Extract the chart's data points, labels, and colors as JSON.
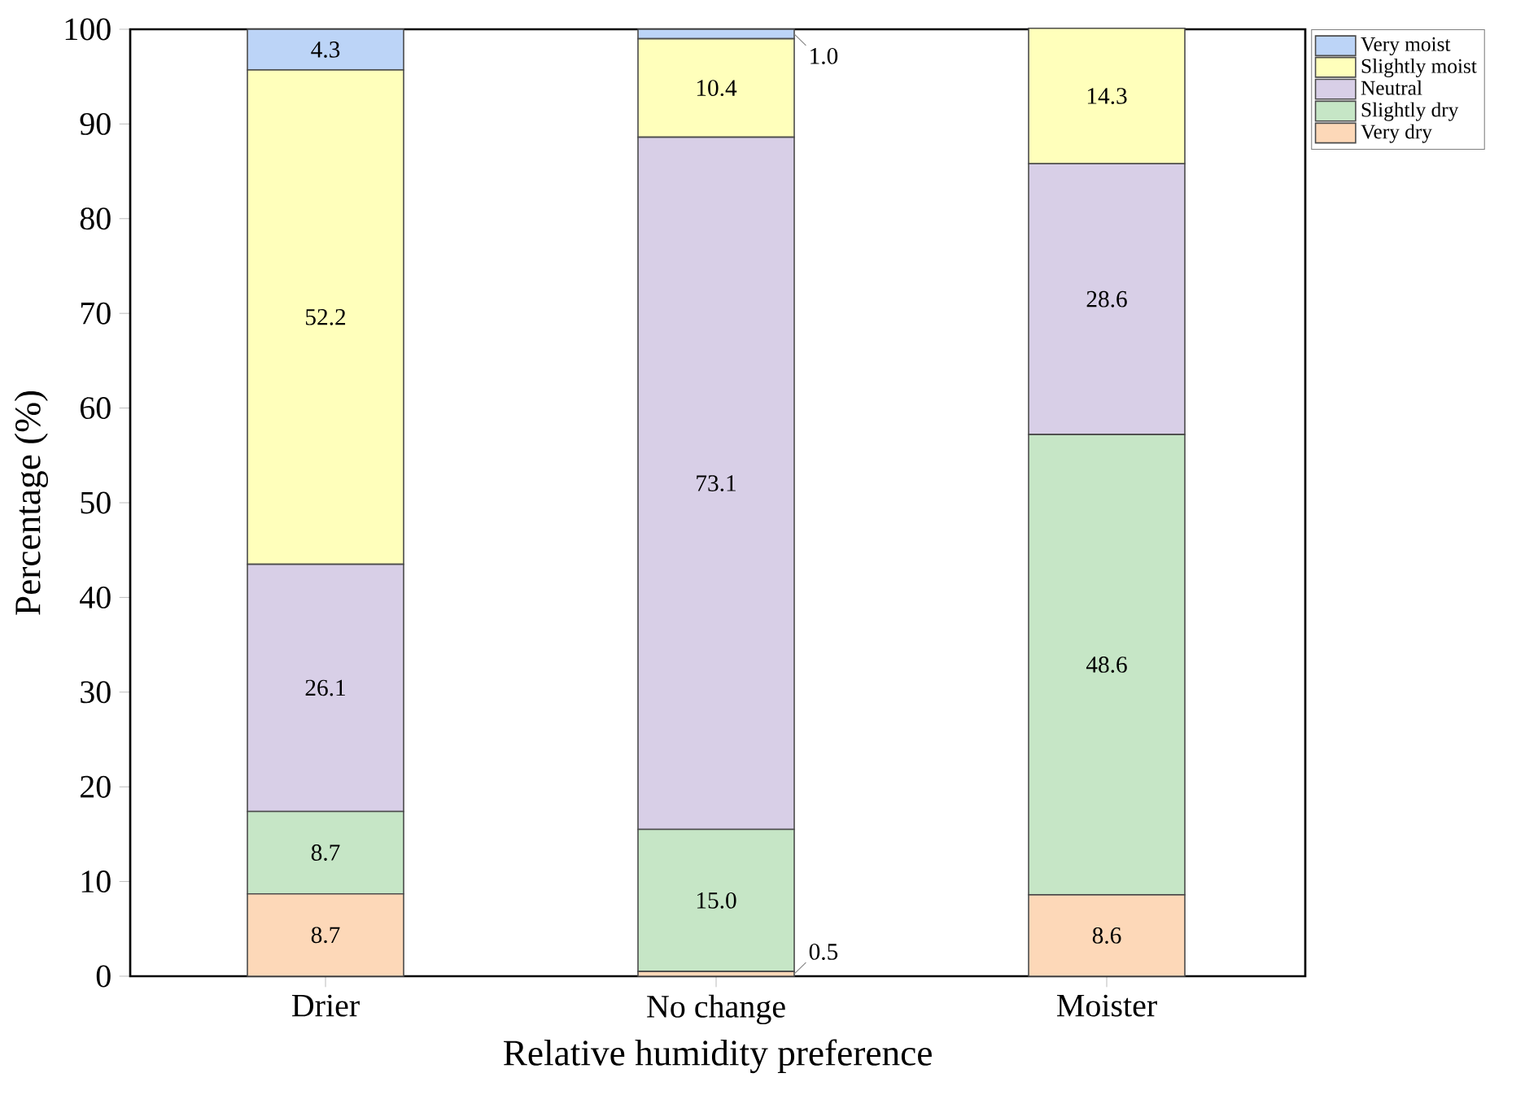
{
  "chart_data": {
    "type": "bar",
    "stacked": true,
    "xlabel": "Relative humidity preference",
    "ylabel": "Percentage (%)",
    "categories": [
      "Drier",
      "No change",
      "Moister"
    ],
    "series": [
      {
        "name": "Very dry",
        "color": "#fdd8b8",
        "values": [
          8.7,
          0.5,
          8.6
        ],
        "value_labels": [
          "8.7",
          "0.5",
          "8.6"
        ]
      },
      {
        "name": "Slightly dry",
        "color": "#c6e6c6",
        "values": [
          8.7,
          15.0,
          48.6
        ],
        "value_labels": [
          "8.7",
          "15.0",
          "48.6"
        ]
      },
      {
        "name": "Neutral",
        "color": "#d8cfe7",
        "values": [
          26.1,
          73.1,
          28.6
        ],
        "value_labels": [
          "26.1",
          "73.1",
          "28.6"
        ]
      },
      {
        "name": "Slightly moist",
        "color": "#ffffbb",
        "values": [
          52.2,
          10.4,
          14.3
        ],
        "value_labels": [
          "52.2",
          "10.4",
          "14.3"
        ]
      },
      {
        "name": "Very moist",
        "color": "#bcd4f7",
        "values": [
          4.3,
          1.0,
          null
        ],
        "value_labels": [
          "4.3",
          "1.0",
          null
        ]
      }
    ],
    "ylim": [
      0,
      100
    ],
    "yticks": [
      0,
      10,
      20,
      30,
      40,
      50,
      60,
      70,
      80,
      90,
      100
    ],
    "legend": "top right",
    "grid": false
  }
}
